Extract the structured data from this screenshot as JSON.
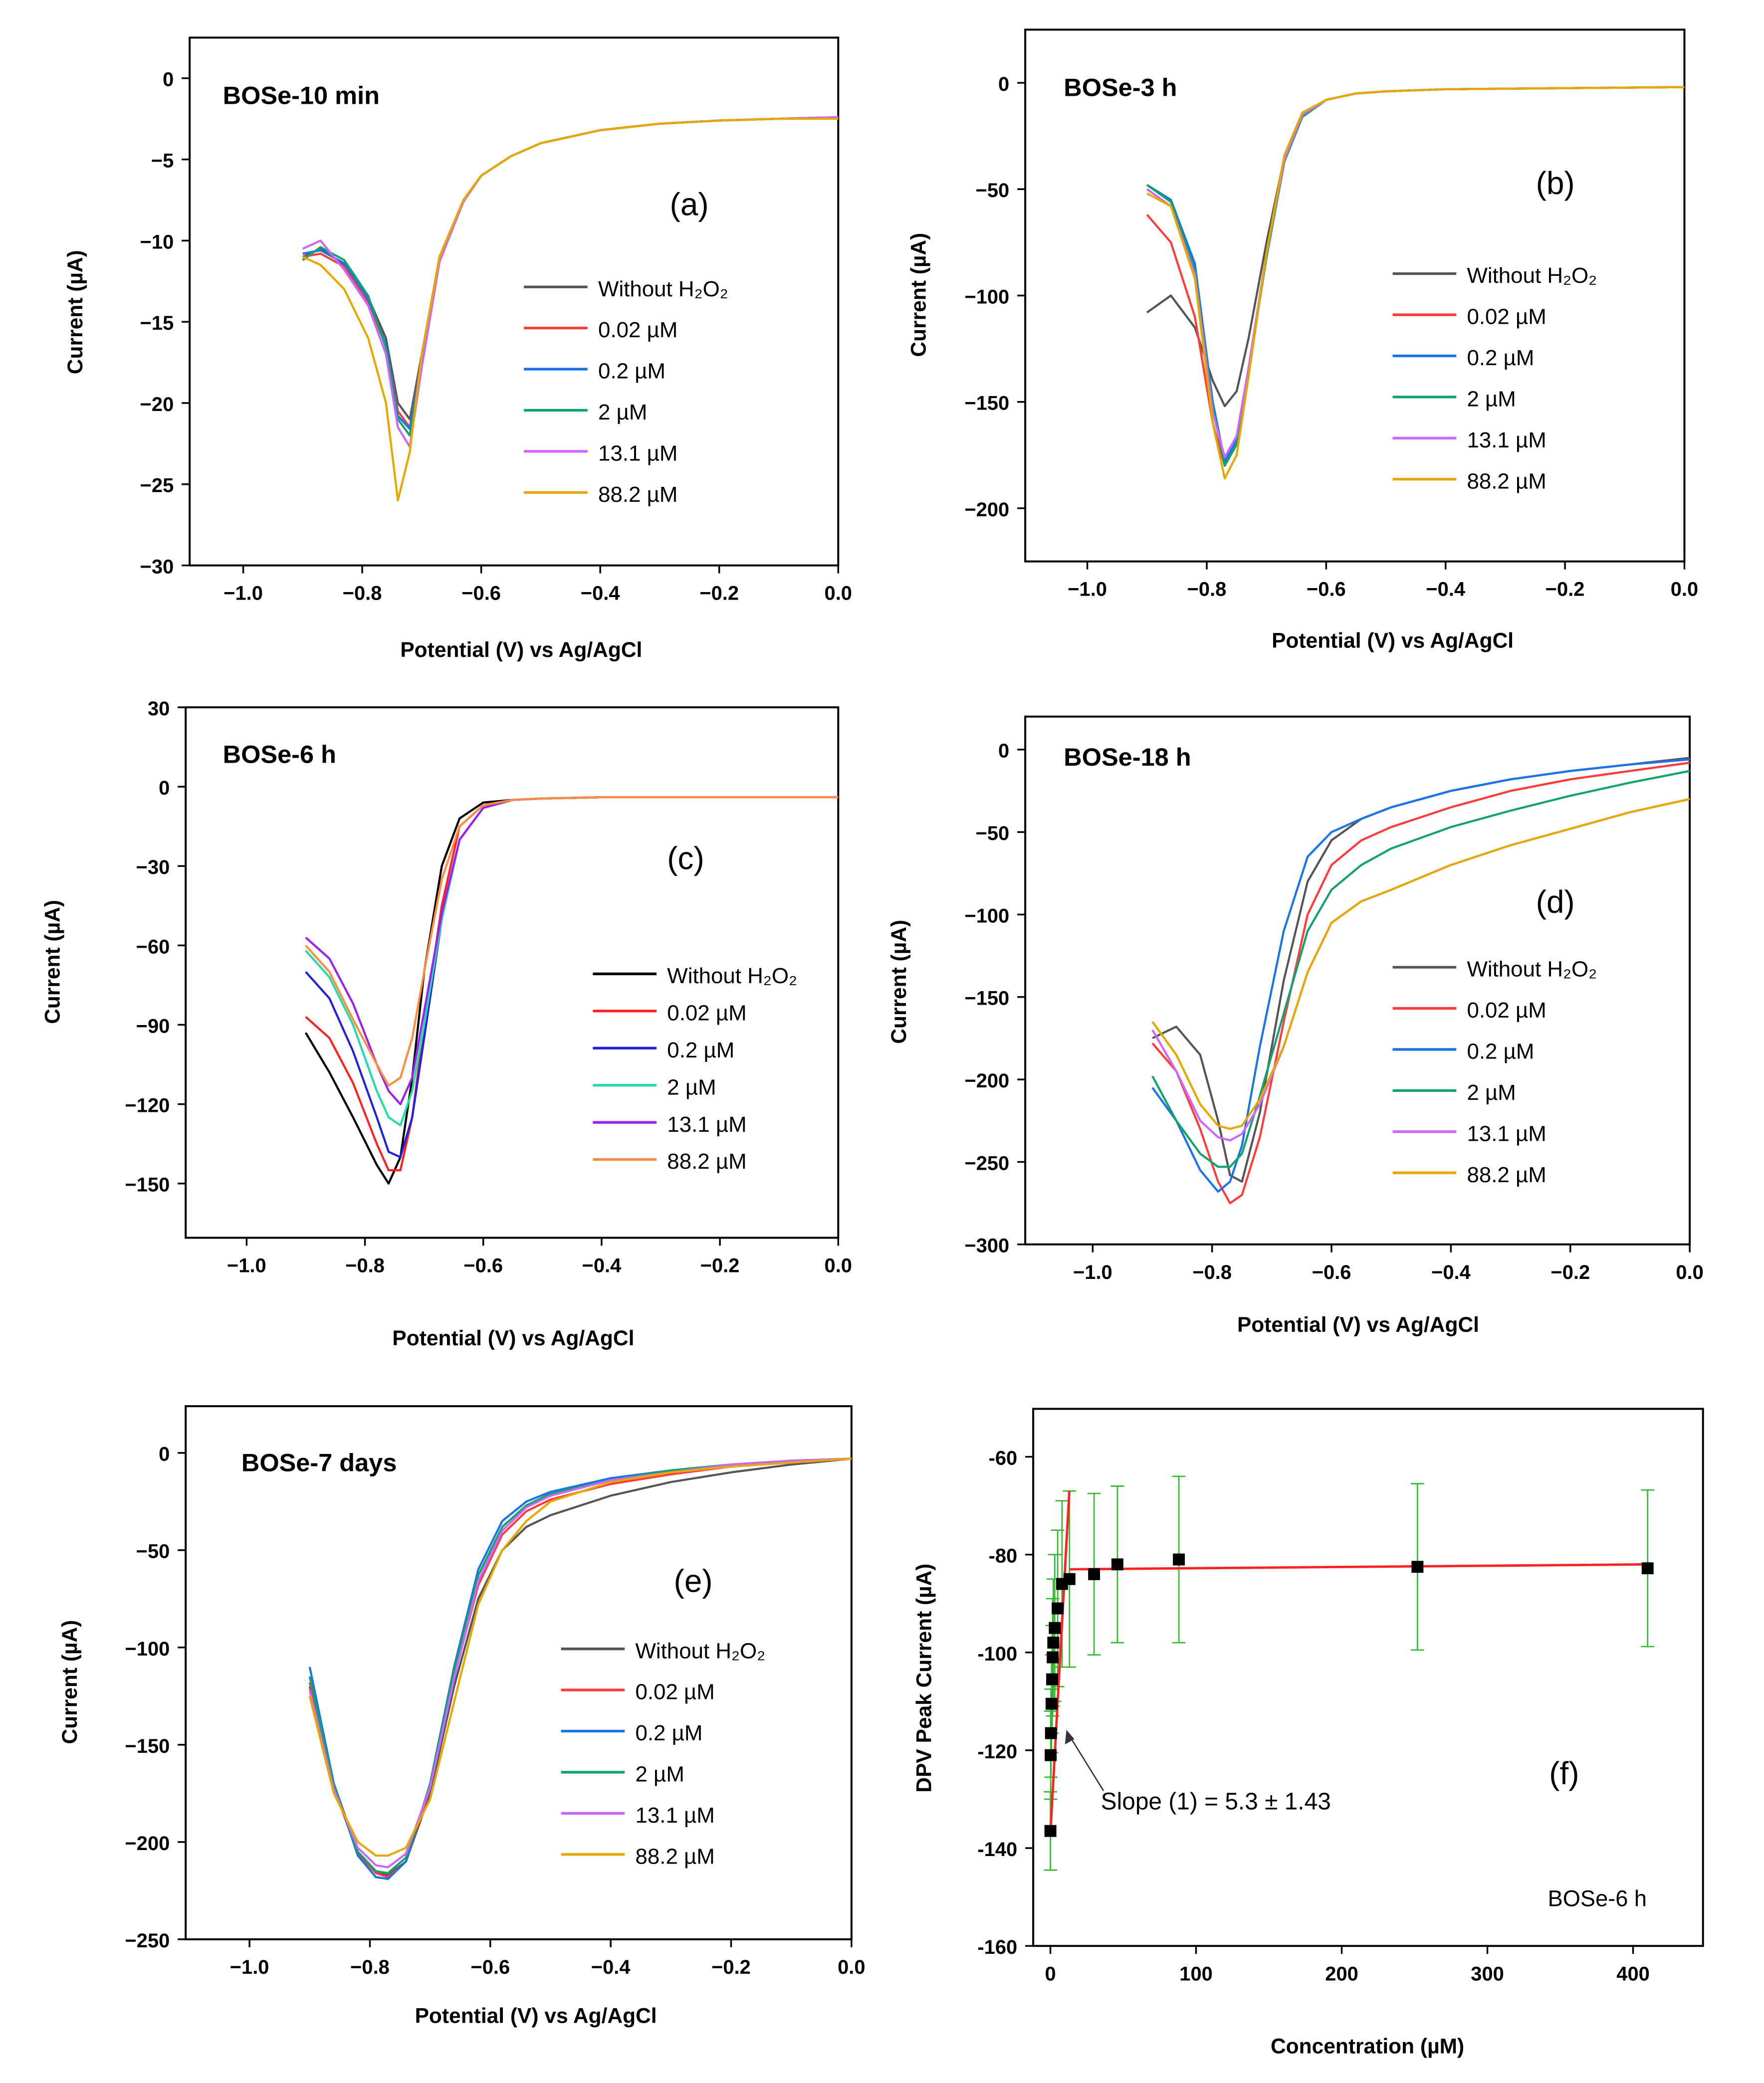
{
  "chart_data": [
    {
      "id": "a",
      "type": "line",
      "title": "BOSe-10 min",
      "panel_label": "(a)",
      "xlabel": "Potential (V) vs Ag/AgCl",
      "ylabel": "Current (µA)",
      "xlim": [
        -1.09,
        0
      ],
      "ylim": [
        -30,
        2.5
      ],
      "xticks": [
        -1.0,
        -0.8,
        -0.6,
        -0.4,
        -0.2,
        0.0
      ],
      "yticks": [
        0,
        -5,
        -10,
        -15,
        -20,
        -25,
        -30
      ],
      "x": [
        -0.9,
        -0.87,
        -0.83,
        -0.79,
        -0.76,
        -0.74,
        -0.72,
        -0.7,
        -0.67,
        -0.63,
        -0.6,
        -0.55,
        -0.5,
        -0.4,
        -0.3,
        -0.2,
        -0.1,
        0
      ],
      "series": [
        {
          "name": "Without H₂O₂",
          "color": "#555555",
          "values": [
            -11,
            -10.5,
            -11.5,
            -13.5,
            -16,
            -20,
            -21,
            -17,
            -11,
            -7.5,
            -6,
            -4.8,
            -4,
            -3.2,
            -2.8,
            -2.6,
            -2.5,
            -2.4
          ]
        },
        {
          "name": "0.02 µM",
          "color": "#ff3b3b",
          "values": [
            -11,
            -10.8,
            -11.6,
            -13.8,
            -16.5,
            -20.5,
            -21.5,
            -17.2,
            -11,
            -7.5,
            -6,
            -4.8,
            -4,
            -3.2,
            -2.8,
            -2.6,
            -2.5,
            -2.4
          ]
        },
        {
          "name": "0.2 µM",
          "color": "#1a73e8",
          "values": [
            -10.8,
            -10.6,
            -11.4,
            -13.6,
            -16.4,
            -20.8,
            -21.6,
            -17.3,
            -11.1,
            -7.6,
            -6,
            -4.8,
            -4,
            -3.2,
            -2.8,
            -2.6,
            -2.5,
            -2.4
          ]
        },
        {
          "name": "2 µM",
          "color": "#12a36a",
          "values": [
            -11.2,
            -10.4,
            -11.2,
            -13.4,
            -16.6,
            -21,
            -22,
            -17.5,
            -11.2,
            -7.6,
            -6,
            -4.8,
            -4,
            -3.2,
            -2.8,
            -2.6,
            -2.5,
            -2.4
          ]
        },
        {
          "name": "13.1 µM",
          "color": "#cc66ff",
          "values": [
            -10.5,
            -10,
            -11.8,
            -14,
            -17,
            -21.5,
            -22.7,
            -17.8,
            -11.3,
            -7.6,
            -6,
            -4.8,
            -4,
            -3.2,
            -2.8,
            -2.6,
            -2.5,
            -2.4
          ]
        },
        {
          "name": "88.2 µM",
          "color": "#e6a800",
          "values": [
            -11,
            -11.5,
            -13,
            -16,
            -20,
            -26,
            -23,
            -17,
            -11,
            -7.5,
            -6,
            -4.8,
            -4,
            -3.2,
            -2.8,
            -2.6,
            -2.5,
            -2.5
          ]
        }
      ]
    },
    {
      "id": "b",
      "type": "line",
      "title": "BOSe-3 h",
      "panel_label": "(b)",
      "xlabel": "Potential (V) vs Ag/AgCl",
      "ylabel": "Current (µA)",
      "xlim": [
        -1.104,
        0
      ],
      "ylim": [
        -225,
        25
      ],
      "xticks": [
        -1.0,
        -0.8,
        -0.6,
        -0.4,
        -0.2,
        0.0
      ],
      "yticks": [
        0,
        -50,
        -100,
        -150,
        -200
      ],
      "x": [
        -0.9,
        -0.86,
        -0.82,
        -0.79,
        -0.77,
        -0.75,
        -0.73,
        -0.7,
        -0.67,
        -0.64,
        -0.6,
        -0.55,
        -0.5,
        -0.4,
        -0.2,
        0
      ],
      "series": [
        {
          "name": "Without H₂O₂",
          "color": "#555555",
          "values": [
            -108,
            -100,
            -115,
            -140,
            -152,
            -145,
            -120,
            -75,
            -35,
            -15,
            -8,
            -5,
            -4,
            -3,
            -2.5,
            -2
          ]
        },
        {
          "name": "0.02 µM",
          "color": "#ff3b3b",
          "values": [
            -62,
            -75,
            -110,
            -160,
            -180,
            -170,
            -135,
            -80,
            -35,
            -15,
            -8,
            -5,
            -4,
            -3,
            -2.5,
            -2
          ]
        },
        {
          "name": "0.2 µM",
          "color": "#1a73e8",
          "values": [
            -48,
            -55,
            -85,
            -150,
            -178,
            -168,
            -135,
            -82,
            -37,
            -16,
            -8,
            -5,
            -4,
            -3,
            -2.5,
            -2
          ]
        },
        {
          "name": "2 µM",
          "color": "#12a36a",
          "values": [
            -48,
            -56,
            -88,
            -152,
            -180,
            -170,
            -136,
            -82,
            -37,
            -16,
            -8,
            -5,
            -4,
            -3,
            -2.5,
            -2
          ]
        },
        {
          "name": "13.1 µM",
          "color": "#cc66ff",
          "values": [
            -50,
            -58,
            -90,
            -155,
            -176,
            -166,
            -134,
            -80,
            -36,
            -15,
            -8,
            -5,
            -4,
            -3,
            -2.5,
            -2
          ]
        },
        {
          "name": "88.2 µM",
          "color": "#e6a800",
          "values": [
            -52,
            -58,
            -92,
            -160,
            -186,
            -175,
            -138,
            -80,
            -34,
            -14,
            -8,
            -5,
            -4,
            -3,
            -2.5,
            -2
          ]
        }
      ]
    },
    {
      "id": "c",
      "type": "line",
      "title": "BOSe-6 h",
      "panel_label": "(c)",
      "xlabel": "Potential (V) vs Ag/AgCl",
      "ylabel": "Current (µA)",
      "xlim": [
        -1.103,
        0
      ],
      "ylim": [
        -170.5,
        30
      ],
      "xticks": [
        -1.0,
        -0.8,
        -0.6,
        -0.4,
        -0.2,
        0.0
      ],
      "yticks": [
        30,
        0,
        -30,
        -60,
        -90,
        -120,
        -150
      ],
      "x": [
        -0.9,
        -0.86,
        -0.82,
        -0.78,
        -0.76,
        -0.74,
        -0.72,
        -0.7,
        -0.67,
        -0.64,
        -0.6,
        -0.55,
        -0.5,
        -0.4,
        -0.2,
        0
      ],
      "series": [
        {
          "name": "Without H₂O₂",
          "color": "#000000",
          "values": [
            -93,
            -108,
            -125,
            -143,
            -150,
            -140,
            -110,
            -70,
            -30,
            -12,
            -6,
            -5,
            -4.5,
            -4,
            -4,
            -4
          ]
        },
        {
          "name": "0.02 µM",
          "color": "#ff2020",
          "values": [
            -87,
            -95,
            -112,
            -135,
            -145,
            -145,
            -125,
            -90,
            -45,
            -15,
            -7,
            -5,
            -4.5,
            -4,
            -4,
            -4
          ]
        },
        {
          "name": "0.2 µM",
          "color": "#2222dd",
          "values": [
            -70,
            -80,
            -100,
            -125,
            -138,
            -140,
            -125,
            -95,
            -50,
            -20,
            -8,
            -5,
            -4.5,
            -4,
            -4,
            -4
          ]
        },
        {
          "name": "2 µM",
          "color": "#22ddaa",
          "values": [
            -62,
            -72,
            -90,
            -115,
            -125,
            -128,
            -115,
            -90,
            -50,
            -20,
            -8,
            -5,
            -4.5,
            -4,
            -4,
            -4
          ]
        },
        {
          "name": "13.1 µM",
          "color": "#9a22ee",
          "values": [
            -57,
            -65,
            -82,
            -105,
            -115,
            -120,
            -110,
            -85,
            -48,
            -20,
            -8,
            -5,
            -4.5,
            -4,
            -4,
            -4
          ]
        },
        {
          "name": "88.2 µM",
          "color": "#ff8c40",
          "values": [
            -60,
            -70,
            -88,
            -105,
            -113,
            -110,
            -95,
            -70,
            -35,
            -15,
            -7,
            -5,
            -4.5,
            -4,
            -4,
            -4
          ]
        }
      ]
    },
    {
      "id": "d",
      "type": "line",
      "title": "BOSe-18 h",
      "panel_label": "(d)",
      "xlabel": "Potential (V) vs Ag/AgCl",
      "ylabel": "Current (µA)",
      "xlim": [
        -1.113,
        0
      ],
      "ylim": [
        -300,
        20
      ],
      "xticks": [
        -1.0,
        -0.8,
        -0.6,
        -0.4,
        -0.2,
        0.0
      ],
      "yticks": [
        0,
        -50,
        -100,
        -150,
        -200,
        -250,
        -300
      ],
      "x": [
        -0.9,
        -0.86,
        -0.82,
        -0.79,
        -0.77,
        -0.75,
        -0.72,
        -0.68,
        -0.64,
        -0.6,
        -0.55,
        -0.5,
        -0.4,
        -0.3,
        -0.2,
        -0.1,
        0
      ],
      "series": [
        {
          "name": "Without H₂O₂",
          "color": "#555555",
          "values": [
            -175,
            -168,
            -185,
            -225,
            -258,
            -262,
            -220,
            -140,
            -80,
            -55,
            -42,
            -35,
            -25,
            -18,
            -13,
            -9,
            -5
          ]
        },
        {
          "name": "0.02 µM",
          "color": "#ff3b3b",
          "values": [
            -178,
            -195,
            -230,
            -262,
            -275,
            -270,
            -235,
            -165,
            -100,
            -70,
            -55,
            -47,
            -35,
            -25,
            -18,
            -13,
            -8
          ]
        },
        {
          "name": "0.2 µM",
          "color": "#1a73e8",
          "values": [
            -205,
            -225,
            -255,
            -268,
            -262,
            -240,
            -180,
            -110,
            -65,
            -50,
            -42,
            -35,
            -25,
            -18,
            -13,
            -9,
            -6
          ]
        },
        {
          "name": "2 µM",
          "color": "#12a36a",
          "values": [
            -198,
            -225,
            -245,
            -253,
            -253,
            -245,
            -210,
            -160,
            -110,
            -85,
            -70,
            -60,
            -47,
            -37,
            -28,
            -20,
            -13
          ]
        },
        {
          "name": "13.1 µM",
          "color": "#cc66ff",
          "values": [
            -170,
            -195,
            -225,
            -235,
            -237,
            -233,
            -215,
            -180,
            -135,
            -105,
            -92,
            -85,
            -70,
            -58,
            -48,
            -38,
            -30
          ]
        },
        {
          "name": "88.2 µM",
          "color": "#e6a800",
          "values": [
            -165,
            -185,
            -215,
            -228,
            -230,
            -228,
            -212,
            -180,
            -135,
            -105,
            -92,
            -85,
            -70,
            -58,
            -48,
            -38,
            -30
          ]
        }
      ]
    },
    {
      "id": "e",
      "type": "line",
      "title": "BOSe-7 days",
      "panel_label": "(e)",
      "xlabel": "Potential (V) vs Ag/AgCl",
      "ylabel": "Current (µA)",
      "xlim": [
        -1.106,
        0
      ],
      "ylim": [
        -250,
        24
      ],
      "xticks": [
        -1.0,
        -0.8,
        -0.6,
        -0.4,
        -0.2,
        0.0
      ],
      "yticks": [
        0,
        -50,
        -100,
        -150,
        -200,
        -250
      ],
      "x": [
        -0.9,
        -0.86,
        -0.82,
        -0.79,
        -0.77,
        -0.74,
        -0.7,
        -0.66,
        -0.62,
        -0.58,
        -0.54,
        -0.5,
        -0.4,
        -0.3,
        -0.2,
        -0.1,
        0
      ],
      "series": [
        {
          "name": "Without H₂O₂",
          "color": "#555555",
          "values": [
            -120,
            -170,
            -205,
            -215,
            -217,
            -210,
            -175,
            -120,
            -75,
            -50,
            -38,
            -32,
            -22,
            -15,
            -10,
            -6,
            -3
          ]
        },
        {
          "name": "0.02 µM",
          "color": "#ff3b3b",
          "values": [
            -118,
            -172,
            -206,
            -216,
            -218,
            -210,
            -172,
            -115,
            -68,
            -42,
            -30,
            -24,
            -16,
            -11,
            -7,
            -5,
            -3
          ]
        },
        {
          "name": "0.2 µM",
          "color": "#1a73e8",
          "values": [
            -110,
            -170,
            -207,
            -218,
            -219,
            -210,
            -170,
            -110,
            -60,
            -35,
            -25,
            -20,
            -13,
            -9,
            -6,
            -4,
            -3
          ]
        },
        {
          "name": "2 µM",
          "color": "#12a36a",
          "values": [
            -115,
            -171,
            -205,
            -215,
            -216,
            -208,
            -171,
            -112,
            -63,
            -38,
            -27,
            -21,
            -14,
            -9,
            -6,
            -4,
            -3
          ]
        },
        {
          "name": "13.1 µM",
          "color": "#cc66ff",
          "values": [
            -122,
            -173,
            -203,
            -212,
            -213,
            -206,
            -172,
            -116,
            -66,
            -40,
            -28,
            -22,
            -14,
            -10,
            -6,
            -4,
            -3
          ]
        },
        {
          "name": "88.2 µM",
          "color": "#e6a800",
          "values": [
            -125,
            -175,
            -200,
            -207,
            -207,
            -203,
            -178,
            -128,
            -78,
            -50,
            -35,
            -25,
            -15,
            -10,
            -7,
            -5,
            -3
          ]
        }
      ]
    },
    {
      "id": "f",
      "type": "scatter",
      "title": "BOSe-6 h",
      "panel_label": "(f)",
      "xlabel": "Concentration (µM)",
      "ylabel": "DPV Peak Current (µA)",
      "xlim": [
        -11.8,
        448
      ],
      "ylim": [
        -160,
        -50.2
      ],
      "xticks": [
        0,
        100,
        200,
        300,
        400
      ],
      "yticks": [
        -60,
        -80,
        -100,
        -120,
        -140,
        -160
      ],
      "points": {
        "x": [
          0.02,
          0.2,
          0.4,
          0.8,
          1.2,
          1.6,
          2,
          3,
          5,
          8,
          13.1,
          30,
          46,
          88.2,
          252,
          410
        ],
        "y": [
          -136.5,
          -121,
          -116.5,
          -110.5,
          -105.5,
          -101,
          -98,
          -95,
          -91,
          -86,
          -85,
          -84,
          -82,
          -81,
          -82.5,
          -82.8
        ],
        "err": [
          8,
          9,
          9,
          10,
          11,
          12,
          13,
          15,
          16,
          17,
          18,
          16.5,
          16,
          17,
          17,
          16
        ]
      },
      "fits": [
        {
          "x": [
            0,
            13
          ],
          "y": [
            -137,
            -67
          ]
        },
        {
          "x": [
            13,
            410
          ],
          "y": [
            -83,
            -82
          ]
        }
      ],
      "annotation": "Slope (1) = 5.3 ± 1.43",
      "point_color": "#000000",
      "error_color": "#2eb82e",
      "fit_color": "#ff2020"
    }
  ]
}
